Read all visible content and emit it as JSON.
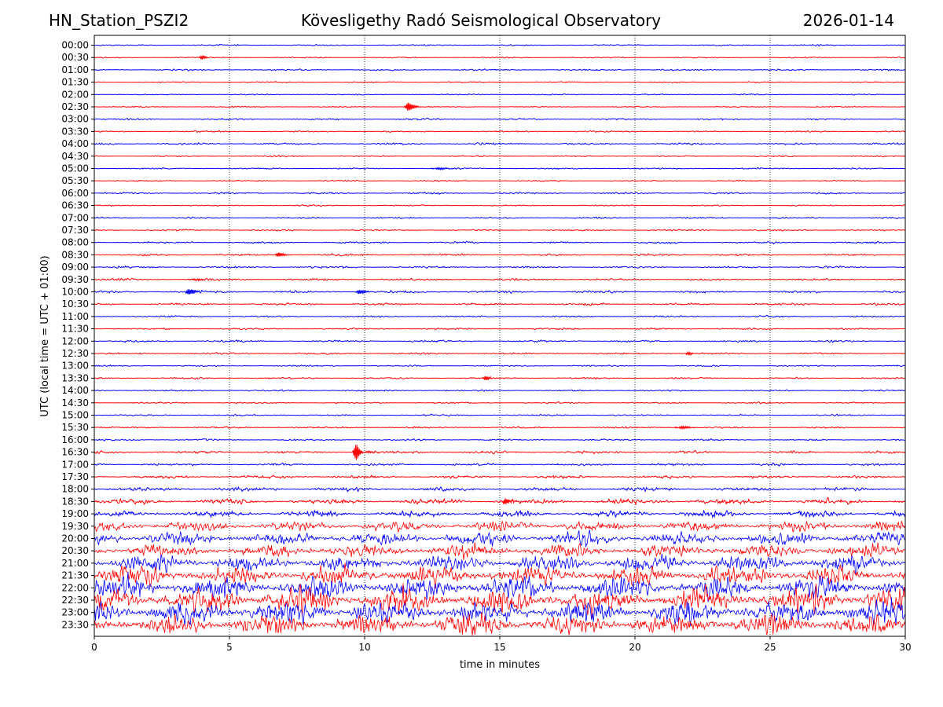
{
  "header": {
    "station": "HN_Station_PSZI2",
    "observatory": "Kövesligethy Radó Seismological Observatory",
    "date": "2026-01-14"
  },
  "chart_data": {
    "type": "line",
    "xlabel": "time in minutes",
    "ylabel": "UTC (local time = UTC + 01:00)",
    "xlim": [
      0,
      30
    ],
    "xticks": [
      0,
      5,
      10,
      15,
      20,
      25,
      30
    ],
    "grid": "vertical dotted at x ticks",
    "row_labels": [
      "00:00",
      "00:30",
      "01:00",
      "01:30",
      "02:00",
      "02:30",
      "03:00",
      "03:30",
      "04:00",
      "04:30",
      "05:00",
      "05:30",
      "06:00",
      "06:30",
      "07:00",
      "07:30",
      "08:00",
      "08:30",
      "09:00",
      "09:30",
      "10:00",
      "10:30",
      "11:00",
      "11:30",
      "12:00",
      "12:30",
      "13:00",
      "13:30",
      "14:00",
      "14:30",
      "15:00",
      "15:30",
      "16:00",
      "16:30",
      "17:00",
      "17:30",
      "18:00",
      "18:30",
      "19:00",
      "19:30",
      "20:00",
      "20:30",
      "21:00",
      "21:30",
      "22:00",
      "22:30",
      "23:00",
      "23:30"
    ],
    "trace_colors": [
      "#0000ff",
      "#ff0000"
    ],
    "trace_amplitude": [
      0.7,
      0.6,
      0.8,
      0.6,
      0.6,
      0.6,
      0.8,
      0.8,
      1.0,
      0.7,
      0.8,
      0.7,
      0.9,
      0.7,
      0.8,
      0.8,
      1.0,
      1.1,
      1.0,
      1.1,
      1.2,
      1.1,
      0.9,
      0.9,
      1.0,
      0.9,
      0.8,
      0.9,
      0.8,
      0.8,
      0.8,
      0.9,
      0.9,
      1.3,
      1.2,
      1.5,
      2.0,
      2.6,
      3.2,
      5.5,
      7.5,
      7.5,
      9.0,
      10.5,
      12.5,
      13.5,
      13.0,
      11.5
    ],
    "events": [
      {
        "row": "00:30",
        "minute": 4.0,
        "amp": 3
      },
      {
        "row": "02:30",
        "minute": 11.6,
        "amp": 6
      },
      {
        "row": "05:00",
        "minute": 12.6,
        "amp": 4
      },
      {
        "row": "08:30",
        "minute": 6.8,
        "amp": 3
      },
      {
        "row": "09:30",
        "minute": 3.6,
        "amp": 3
      },
      {
        "row": "10:00",
        "minute": 3.5,
        "amp": 4
      },
      {
        "row": "10:00",
        "minute": 9.8,
        "amp": 3
      },
      {
        "row": "12:30",
        "minute": 22.0,
        "amp": 2
      },
      {
        "row": "13:30",
        "minute": 14.5,
        "amp": 3
      },
      {
        "row": "15:30",
        "minute": 21.6,
        "amp": 5
      },
      {
        "row": "16:30",
        "minute": 9.7,
        "amp": 12
      },
      {
        "row": "18:30",
        "minute": 15.2,
        "amp": 4
      }
    ]
  }
}
